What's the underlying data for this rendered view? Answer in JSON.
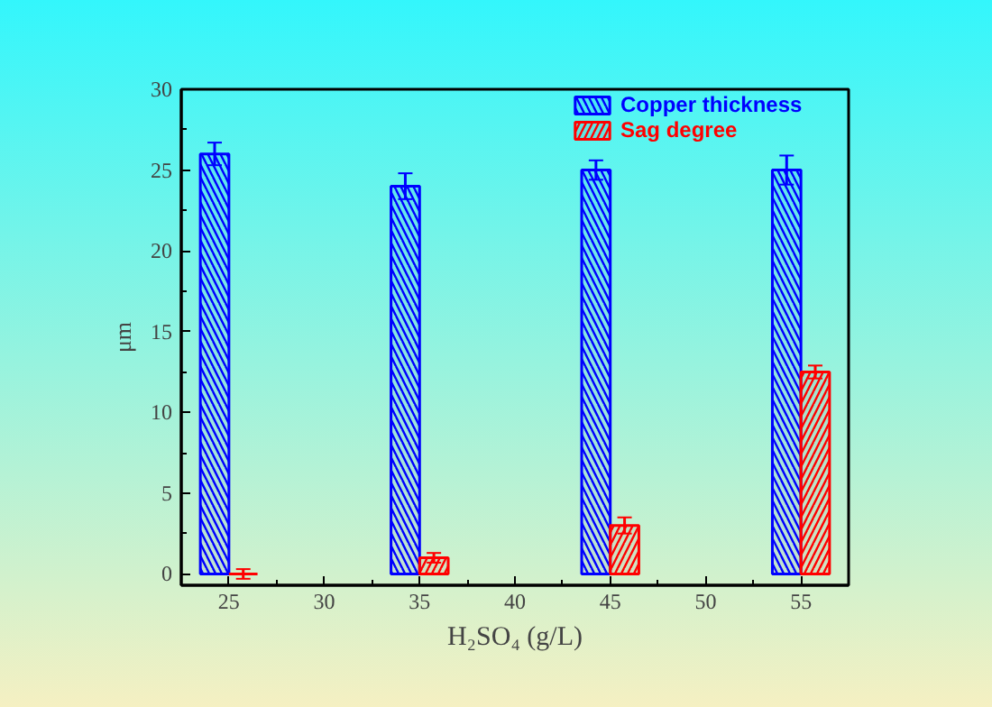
{
  "chart_data": {
    "type": "bar",
    "xlabel": "H₂SO₄ (g/L)",
    "ylabel": "μm",
    "x": [
      25,
      35,
      45,
      55
    ],
    "series": [
      {
        "name": "Copper thickness",
        "color": "#0000ff",
        "values": [
          26.0,
          24.0,
          25.0,
          25.0
        ],
        "errors": [
          0.7,
          0.8,
          0.6,
          0.9
        ]
      },
      {
        "name": "Sag degree",
        "color": "#ff0000",
        "values": [
          0.0,
          1.0,
          3.0,
          12.5
        ],
        "errors": [
          0.3,
          0.3,
          0.5,
          0.4
        ]
      }
    ],
    "xlim": [
      22.5,
      57.5
    ],
    "xticks": [
      25,
      30,
      35,
      40,
      45,
      50,
      55
    ],
    "ylim": [
      -0.7,
      30
    ],
    "yticks": [
      0,
      5,
      10,
      15,
      20,
      25,
      30
    ],
    "grid": false,
    "legend": "top right"
  }
}
